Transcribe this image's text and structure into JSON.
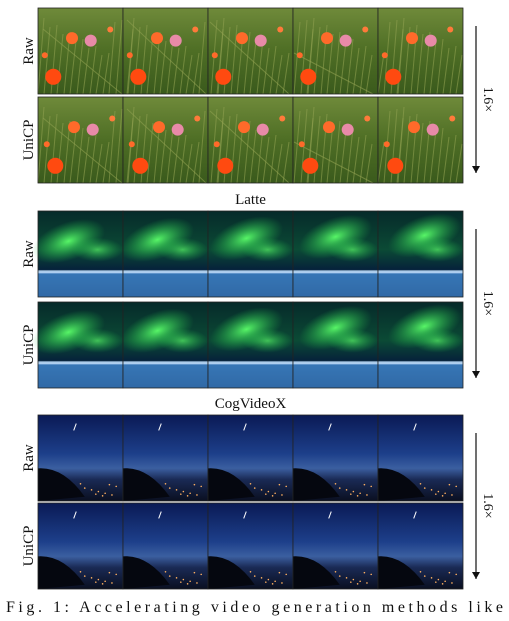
{
  "groups": [
    {
      "rows": [
        {
          "label": "Raw"
        },
        {
          "label": "UniCP"
        }
      ],
      "speedup": "1.6×"
    },
    {
      "title": "Latte",
      "rows": [
        {
          "label": "Raw"
        },
        {
          "label": "UniCP"
        }
      ],
      "speedup": "1.6×"
    },
    {
      "title": "CogVideoX",
      "rows": [
        {
          "label": "Raw"
        },
        {
          "label": "UniCP"
        }
      ],
      "speedup": "1.6×"
    }
  ],
  "caption": "Fig. 1: Accelerating video generation methods like"
}
